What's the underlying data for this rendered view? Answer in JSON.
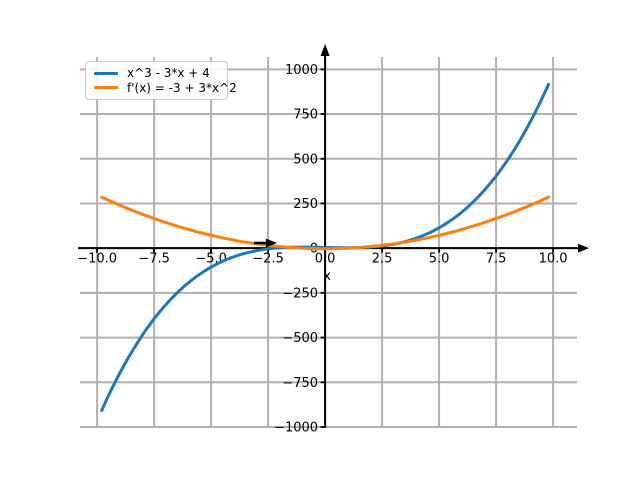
{
  "chart_data": {
    "type": "line",
    "title": "",
    "xlabel": "x",
    "ylabel": "",
    "grid": true,
    "grid_color": "#b0b0b0",
    "axis_color": "#000000",
    "xlim": [
      -10.75,
      11.05
    ],
    "ylim": [
      -1000,
      1069
    ],
    "x_range": [
      -9.8,
      9.8
    ],
    "x_ticks": [
      -10,
      -7.5,
      -5,
      -2.5,
      0,
      2.5,
      5,
      7.5,
      10
    ],
    "x_tick_labels": [
      "−10.0",
      "−7.5",
      "−5.0",
      "−2.5",
      "0.0",
      "2.5",
      "5.0",
      "7.5",
      "10.0"
    ],
    "y_ticks": [
      1000,
      750,
      500,
      250,
      0,
      -250,
      -500,
      -750,
      -1000
    ],
    "y_tick_labels": [
      "1000",
      "750",
      "500",
      "250",
      "0",
      "−250",
      "−500",
      "−750",
      "−1000"
    ],
    "series": [
      {
        "name": "x^3 - 3*x + 4",
        "poly_coeffs": [
          4,
          -3,
          0,
          1
        ],
        "color": "#1f77b4",
        "linewidth": 3
      },
      {
        "name": "f'(x) = -3 + 3*x^2",
        "poly_coeffs": [
          -3,
          0,
          3
        ],
        "color": "#ff7f0e",
        "linewidth": 3
      }
    ],
    "annotation": {
      "type": "arrow-right",
      "x": -2.2,
      "y": 29
    },
    "legend_position": "upper left"
  },
  "legend": {
    "entries": [
      {
        "label": "x^3 - 3*x + 4",
        "color": "#1f77b4"
      },
      {
        "label": "f'(x) = -3 + 3*x^2",
        "color": "#ff7f0e"
      }
    ]
  }
}
